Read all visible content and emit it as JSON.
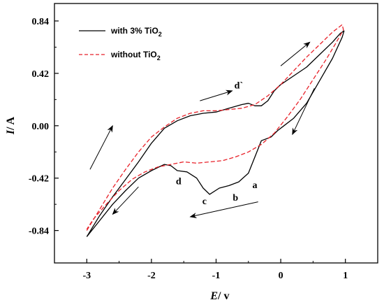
{
  "chart_data": {
    "type": "line",
    "xlabel": {
      "var": "E",
      "unit": " / v"
    },
    "ylabel": {
      "var": "I",
      "unit": " / A"
    },
    "xlim": [
      -3.5,
      1.5
    ],
    "ylim": [
      -1.1,
      0.98
    ],
    "xticks": [
      {
        "value": -3,
        "label": "-3"
      },
      {
        "value": -2,
        "label": "-2"
      },
      {
        "value": -1,
        "label": "-1"
      },
      {
        "value": 0,
        "label": "0"
      },
      {
        "value": 1,
        "label": "1"
      }
    ],
    "yticks": [
      {
        "value": 0.84,
        "label": "0.84"
      },
      {
        "value": 0.42,
        "label": "0.42"
      },
      {
        "value": 0.0,
        "label": "0.00"
      },
      {
        "value": -0.42,
        "label": "-0.42"
      },
      {
        "value": -0.84,
        "label": "-0.84"
      }
    ],
    "legend_position": "top-left",
    "series": [
      {
        "name": "with 3% TiO",
        "name_sub": "2",
        "color": "#000000",
        "style": "solid",
        "points": [
          [
            -3.0,
            -0.89
          ],
          [
            -2.8,
            -0.72
          ],
          [
            -2.6,
            -0.57
          ],
          [
            -2.4,
            -0.43
          ],
          [
            -2.2,
            -0.29
          ],
          [
            -2.0,
            -0.14
          ],
          [
            -1.8,
            -0.02
          ],
          [
            -1.6,
            0.04
          ],
          [
            -1.4,
            0.08
          ],
          [
            -1.2,
            0.1
          ],
          [
            -1.0,
            0.11
          ],
          [
            -0.8,
            0.14
          ],
          [
            -0.6,
            0.17
          ],
          [
            -0.5,
            0.18
          ],
          [
            -0.4,
            0.16
          ],
          [
            -0.3,
            0.16
          ],
          [
            -0.2,
            0.2
          ],
          [
            -0.1,
            0.28
          ],
          [
            0.0,
            0.33
          ],
          [
            0.2,
            0.4
          ],
          [
            0.4,
            0.47
          ],
          [
            0.6,
            0.57
          ],
          [
            0.8,
            0.67
          ],
          [
            0.92,
            0.74
          ],
          [
            0.98,
            0.76
          ],
          [
            0.95,
            0.71
          ],
          [
            0.8,
            0.54
          ],
          [
            0.6,
            0.36
          ],
          [
            0.4,
            0.18
          ],
          [
            0.2,
            0.06
          ],
          [
            0.05,
            0.0
          ],
          [
            -0.05,
            -0.04
          ],
          [
            -0.15,
            -0.09
          ],
          [
            -0.3,
            -0.12
          ],
          [
            -0.4,
            -0.25
          ],
          [
            -0.5,
            -0.38
          ],
          [
            -0.65,
            -0.45
          ],
          [
            -0.8,
            -0.48
          ],
          [
            -0.95,
            -0.5
          ],
          [
            -1.1,
            -0.55
          ],
          [
            -1.2,
            -0.5
          ],
          [
            -1.3,
            -0.42
          ],
          [
            -1.45,
            -0.37
          ],
          [
            -1.6,
            -0.36
          ],
          [
            -1.7,
            -0.32
          ],
          [
            -1.8,
            -0.31
          ],
          [
            -2.0,
            -0.36
          ],
          [
            -2.2,
            -0.42
          ],
          [
            -2.4,
            -0.52
          ],
          [
            -2.6,
            -0.63
          ],
          [
            -2.8,
            -0.76
          ],
          [
            -3.0,
            -0.89
          ]
        ]
      },
      {
        "name": "without TiO",
        "name_sub": "2",
        "color": "#e8222a",
        "style": "dashed",
        "points": [
          [
            -3.0,
            -0.84
          ],
          [
            -2.8,
            -0.67
          ],
          [
            -2.6,
            -0.5
          ],
          [
            -2.4,
            -0.35
          ],
          [
            -2.2,
            -0.21
          ],
          [
            -2.0,
            -0.09
          ],
          [
            -1.8,
            -0.01
          ],
          [
            -1.6,
            0.06
          ],
          [
            -1.4,
            0.1
          ],
          [
            -1.2,
            0.12
          ],
          [
            -1.0,
            0.12
          ],
          [
            -0.8,
            0.13
          ],
          [
            -0.6,
            0.14
          ],
          [
            -0.4,
            0.17
          ],
          [
            -0.2,
            0.24
          ],
          [
            0.0,
            0.33
          ],
          [
            0.2,
            0.44
          ],
          [
            0.4,
            0.55
          ],
          [
            0.6,
            0.65
          ],
          [
            0.8,
            0.75
          ],
          [
            0.95,
            0.81
          ],
          [
            0.97,
            0.77
          ],
          [
            0.85,
            0.66
          ],
          [
            0.7,
            0.53
          ],
          [
            0.5,
            0.37
          ],
          [
            0.3,
            0.21
          ],
          [
            0.1,
            0.07
          ],
          [
            -0.1,
            -0.06
          ],
          [
            -0.3,
            -0.15
          ],
          [
            -0.5,
            -0.21
          ],
          [
            -0.7,
            -0.25
          ],
          [
            -0.9,
            -0.28
          ],
          [
            -1.1,
            -0.29
          ],
          [
            -1.3,
            -0.3
          ],
          [
            -1.5,
            -0.29
          ],
          [
            -1.7,
            -0.31
          ],
          [
            -1.9,
            -0.33
          ],
          [
            -2.1,
            -0.37
          ],
          [
            -2.3,
            -0.43
          ],
          [
            -2.5,
            -0.52
          ],
          [
            -2.7,
            -0.63
          ],
          [
            -2.9,
            -0.75
          ],
          [
            -3.0,
            -0.83
          ]
        ]
      }
    ],
    "annotations": [
      {
        "text": "d`",
        "x": -0.65,
        "y": 0.3
      },
      {
        "text": "d",
        "x": -1.58,
        "y": -0.47
      },
      {
        "text": "c",
        "x": -1.18,
        "y": -0.63
      },
      {
        "text": "b",
        "x": -0.7,
        "y": -0.6
      },
      {
        "text": "a",
        "x": -0.4,
        "y": -0.5
      }
    ],
    "arrows": [
      {
        "from": [
          -2.95,
          -0.35
        ],
        "to": [
          -2.6,
          0.0
        ]
      },
      {
        "from": [
          -1.25,
          0.2
        ],
        "to": [
          -0.75,
          0.28
        ]
      },
      {
        "from": [
          0.0,
          0.48
        ],
        "to": [
          0.45,
          0.67
        ]
      },
      {
        "from": [
          0.52,
          0.3
        ],
        "to": [
          0.18,
          -0.07
        ]
      },
      {
        "from": [
          -0.35,
          -0.61
        ],
        "to": [
          -1.4,
          -0.73
        ]
      },
      {
        "from": [
          -2.2,
          -0.49
        ],
        "to": [
          -2.6,
          -0.71
        ]
      }
    ]
  }
}
